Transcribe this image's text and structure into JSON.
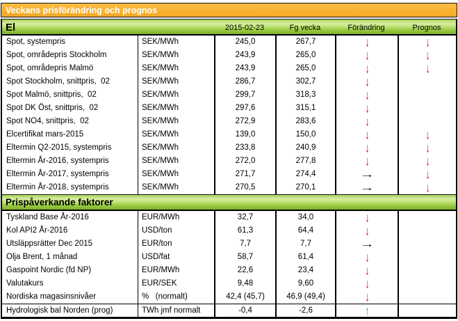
{
  "title": "Veckans prisförändring och prognos",
  "columns": {
    "date": "2015-02-23",
    "prev_week": "Fg vecka",
    "change": "Förändring",
    "forecast": "Prognos"
  },
  "icons": {
    "down": "↓",
    "right": "→",
    "up": "↑",
    "down_name": "down-arrow-icon",
    "right_name": "right-arrow-icon",
    "up_name": "up-arrow-icon"
  },
  "colors": {
    "title_bar_amber": "#F9B233",
    "section_bar_green": "#8CC63E",
    "arrow_down_red": "#FF0000",
    "arrow_up_green": "#00C17D",
    "arrow_right_black": "#000000"
  },
  "sections": [
    {
      "name": "El",
      "rows": [
        {
          "label": "Spot, systempris",
          "unit": "SEK/MWh",
          "current": "245,0",
          "previous": "267,7",
          "change": "down",
          "forecast": "down"
        },
        {
          "label": "Spot, områdepris Stockholm",
          "unit": "SEK/MWh",
          "current": "243,9",
          "previous": "265,0",
          "change": "down",
          "forecast": "down"
        },
        {
          "label": "Spot, områdepris Malmö",
          "unit": "SEK/MWh",
          "current": "243,9",
          "previous": "265,0",
          "change": "down",
          "forecast": "down"
        },
        {
          "label": "Spot Stockholm, snittpris,  02",
          "unit": "SEK/MWh",
          "current": "286,7",
          "previous": "302,7",
          "change": "down",
          "forecast": ""
        },
        {
          "label": "Spot Malmö, snittpris,  02",
          "unit": "SEK/MWh",
          "current": "299,7",
          "previous": "318,3",
          "change": "down",
          "forecast": ""
        },
        {
          "label": "Spot DK Öst, snittpris,  02",
          "unit": "SEK/MWh",
          "current": "297,6",
          "previous": "315,1",
          "change": "down",
          "forecast": ""
        },
        {
          "label": "Spot NO4, snittpris,  02",
          "unit": "SEK/MWh",
          "current": "272,9",
          "previous": "283,6",
          "change": "down",
          "forecast": ""
        },
        {
          "label": "Elcertifikat mars-2015",
          "unit": "SEK/MWh",
          "current": "139,0",
          "previous": "150,0",
          "change": "down",
          "forecast": "down"
        },
        {
          "label": "Eltermin Q2-2015, systempris",
          "unit": "SEK/MWh",
          "current": "233,8",
          "previous": "240,9",
          "change": "down",
          "forecast": "down"
        },
        {
          "label": "Eltermin År-2016, systempris",
          "unit": "SEK/MWh",
          "current": "272,0",
          "previous": "277,8",
          "change": "down",
          "forecast": "down"
        },
        {
          "label": "Eltermin År-2017, systempris",
          "unit": "SEK/MWh",
          "current": "271,7",
          "previous": "274,4",
          "change": "right",
          "forecast": "down"
        },
        {
          "label": "Eltermin År-2018, systempris",
          "unit": "SEK/MWh",
          "current": "270,5",
          "previous": "270,1",
          "change": "right",
          "forecast": "down"
        }
      ]
    },
    {
      "name": "Prispåverkande faktorer",
      "rows": [
        {
          "label": "Tyskland Base År-2016",
          "unit": "EUR/MWh",
          "current": "32,7",
          "previous": "34,0",
          "change": "down",
          "forecast": ""
        },
        {
          "label": "Kol API2 År-2016",
          "unit": "USD/ton",
          "current": "61,3",
          "previous": "64,4",
          "change": "down",
          "forecast": ""
        },
        {
          "label": "Utsläppsrätter Dec 2015",
          "unit": "EUR/ton",
          "current": "7,7",
          "previous": "7,7",
          "change": "right",
          "forecast": ""
        },
        {
          "label": "Olja Brent, 1 månad",
          "unit": "USD/fat",
          "current": "58,7",
          "previous": "61,4",
          "change": "down",
          "forecast": ""
        },
        {
          "label": "Gaspoint Nordic (fd NP)",
          "unit": "EUR/MWh",
          "current": "22,6",
          "previous": "23,4",
          "change": "down",
          "forecast": ""
        },
        {
          "label": "Valutakurs",
          "unit": "EUR/SEK",
          "current": "9,48",
          "previous": "9,60",
          "change": "down",
          "forecast": ""
        },
        {
          "label": "Nordiska magasinsnivåer",
          "unit": "%   (normalt)",
          "current": "42,4 (45,7)",
          "previous": "46,9 (49,4)",
          "change": "down",
          "forecast": ""
        },
        {
          "label": "Hydrologisk bal Norden (prog)",
          "unit": "TWh jmf normalt",
          "current": "-0,4",
          "previous": "-2,6",
          "change": "up",
          "forecast": ""
        }
      ]
    }
  ]
}
